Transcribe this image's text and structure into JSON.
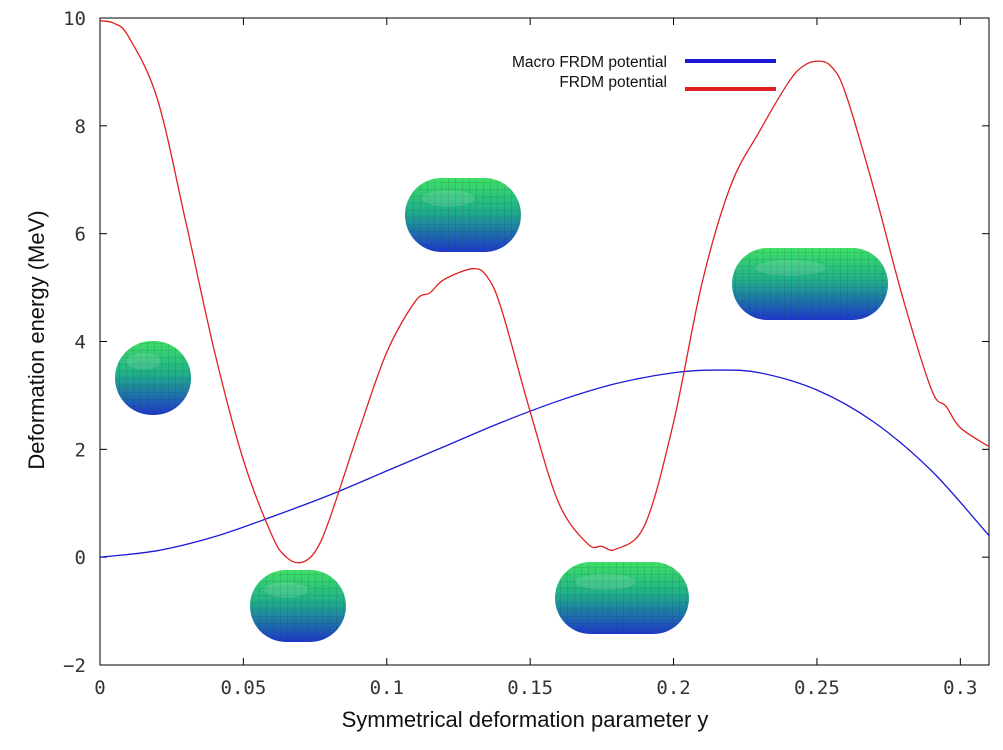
{
  "chart_data": {
    "type": "line",
    "title": "",
    "xlabel": "Symmetrical deformation parameter y",
    "ylabel": "Deformation energy (MeV)",
    "xlim": [
      0,
      0.31
    ],
    "ylim": [
      -2,
      10
    ],
    "x_ticks": [
      "0",
      "0.05",
      "0.1",
      "0.15",
      "0.2",
      "0.25",
      "0.3"
    ],
    "x_tick_values": [
      0,
      0.05,
      0.1,
      0.15,
      0.2,
      0.25,
      0.3
    ],
    "y_ticks": [
      "-2",
      "0",
      "2",
      "4",
      "6",
      "8",
      "10"
    ],
    "y_tick_values": [
      -2,
      0,
      2,
      4,
      6,
      8,
      10
    ],
    "grid": false,
    "legend_position": "top-right",
    "series": [
      {
        "name": "Macro FRDM potential",
        "color": "#1a1ad6",
        "x": [
          0,
          0.02,
          0.04,
          0.06,
          0.08,
          0.1,
          0.12,
          0.14,
          0.16,
          0.18,
          0.2,
          0.215,
          0.23,
          0.25,
          0.27,
          0.29,
          0.31
        ],
        "y": [
          0,
          0.12,
          0.38,
          0.75,
          1.15,
          1.6,
          2.05,
          2.5,
          2.9,
          3.22,
          3.42,
          3.47,
          3.42,
          3.1,
          2.5,
          1.6,
          0.4
        ]
      },
      {
        "name": "FRDM potential",
        "color": "#e02020",
        "x": [
          0,
          0.005,
          0.01,
          0.02,
          0.03,
          0.04,
          0.05,
          0.06,
          0.065,
          0.07,
          0.075,
          0.08,
          0.09,
          0.1,
          0.11,
          0.115,
          0.12,
          0.13,
          0.135,
          0.14,
          0.15,
          0.16,
          0.17,
          0.175,
          0.18,
          0.19,
          0.2,
          0.21,
          0.22,
          0.23,
          0.24,
          0.245,
          0.25,
          0.255,
          0.26,
          0.27,
          0.28,
          0.29,
          0.295,
          0.3,
          0.31
        ],
        "y": [
          9.95,
          9.9,
          9.65,
          8.5,
          6.2,
          3.8,
          1.8,
          0.4,
          0.0,
          -0.1,
          0.1,
          0.7,
          2.3,
          3.8,
          4.75,
          4.9,
          5.15,
          5.35,
          5.2,
          4.6,
          2.7,
          1.0,
          0.25,
          0.2,
          0.15,
          0.6,
          2.5,
          5.1,
          6.9,
          7.9,
          8.8,
          9.1,
          9.2,
          9.1,
          8.6,
          6.8,
          4.8,
          3.1,
          2.8,
          2.4,
          2.05
        ]
      }
    ],
    "shapes": [
      {
        "name": "spherical-nucleus-shape",
        "colors": [
          "#33d65c",
          "#1a3ec2"
        ]
      },
      {
        "name": "ground-state-nucleus-shape",
        "colors": [
          "#33d65c",
          "#1a3ec2"
        ]
      },
      {
        "name": "first-barrier-nucleus-shape",
        "colors": [
          "#33d65c",
          "#1a3ec2"
        ]
      },
      {
        "name": "second-minimum-nucleus-shape",
        "colors": [
          "#33d65c",
          "#1a3ec2"
        ]
      },
      {
        "name": "second-barrier-nucleus-shape",
        "colors": [
          "#33d65c",
          "#1a3ec2"
        ]
      }
    ]
  }
}
